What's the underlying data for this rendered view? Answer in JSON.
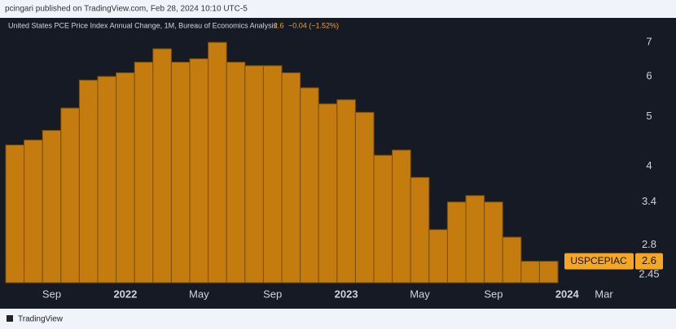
{
  "chart_data": {
    "type": "bar",
    "published": "pcingari published on TradingView.com, Feb 28, 2024 10:10 UTC-5",
    "title": "United States PCE Price Index Annual Change, 1M, Bureau of Economics Analysis",
    "last_value": 2.6,
    "change_label": "−0.04 (−1.52%)",
    "symbol": "USPCEPIAC",
    "brand": "TradingView",
    "categories": [
      null,
      null,
      "Sep",
      null,
      null,
      null,
      "2022",
      null,
      null,
      null,
      "May",
      null,
      null,
      null,
      "Sep",
      null,
      null,
      null,
      "2023",
      null,
      null,
      null,
      "May",
      null,
      null,
      null,
      "Sep",
      null,
      null,
      null,
      "2024",
      null,
      "Mar",
      null
    ],
    "values": [
      4.4,
      4.5,
      4.7,
      5.2,
      5.9,
      6.0,
      6.1,
      6.4,
      6.8,
      6.4,
      6.5,
      7.0,
      6.4,
      6.3,
      6.3,
      6.1,
      5.7,
      5.3,
      5.4,
      5.1,
      4.2,
      4.3,
      3.8,
      3.0,
      3.4,
      3.5,
      3.4,
      2.9,
      2.6,
      2.6,
      null,
      null,
      null,
      null
    ],
    "color": "#c47c0f",
    "log_scale": true,
    "ylim": [
      2.36,
      7.32
    ],
    "yticks": [
      2.45,
      2.8,
      3.4,
      4,
      5,
      6,
      7
    ],
    "grid": false
  }
}
